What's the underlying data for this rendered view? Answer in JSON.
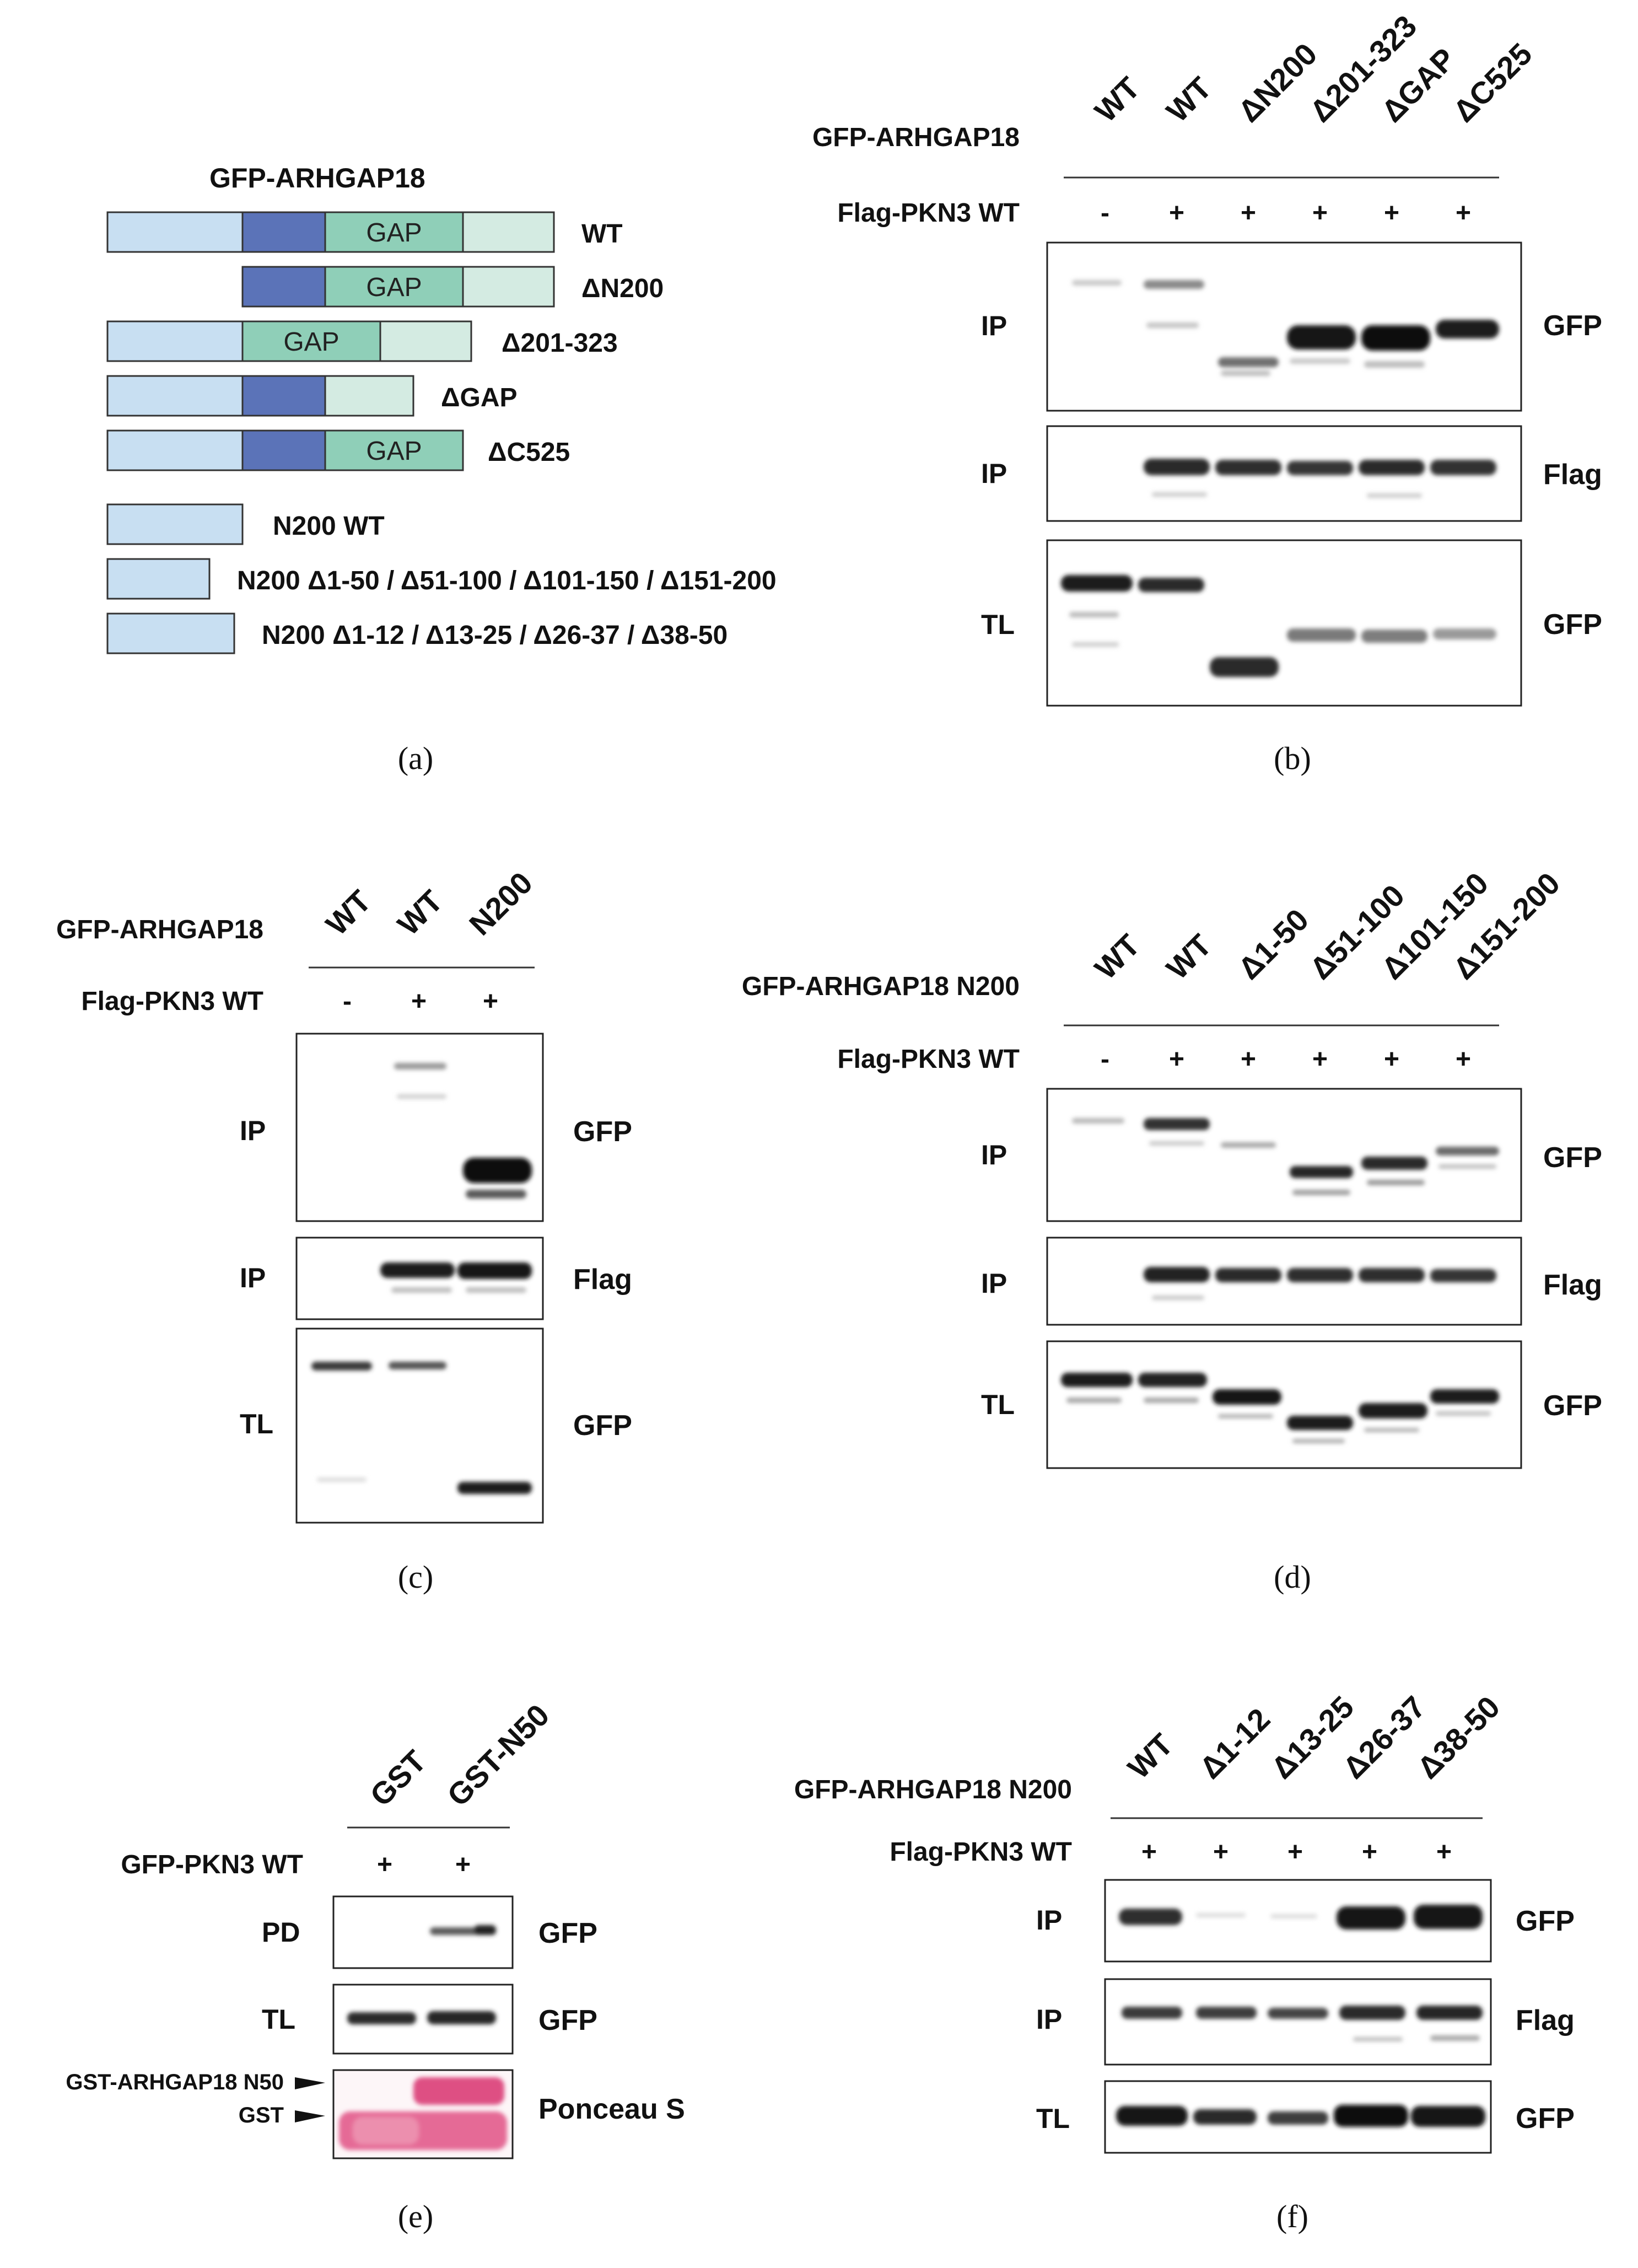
{
  "panel_a": {
    "caption": "(a)",
    "title": "GFP-ARHGAP18",
    "gap_label": "GAP",
    "constructs": [
      {
        "name": "WT"
      },
      {
        "name": "ΔN200"
      },
      {
        "name": "Δ201-323"
      },
      {
        "name": "ΔGAP"
      },
      {
        "name": "ΔC525"
      },
      {
        "name": "N200 WT"
      },
      {
        "name": "N200 Δ1-50 / Δ51-100 / Δ101-150 / Δ151-200"
      },
      {
        "name": "N200 Δ1-12 / Δ13-25 / Δ26-37 / Δ38-50"
      }
    ]
  },
  "panel_b": {
    "caption": "(b)",
    "row1_label": "GFP-ARHGAP18",
    "row2_label": "Flag-PKN3 WT",
    "lanes": [
      "WT",
      "WT",
      "ΔN200",
      "Δ201-323",
      "ΔGAP",
      "ΔC525"
    ],
    "signs": [
      "-",
      "+",
      "+",
      "+",
      "+",
      "+"
    ],
    "blots": [
      {
        "left": "IP",
        "right": "GFP"
      },
      {
        "left": "IP",
        "right": "Flag"
      },
      {
        "left": "TL",
        "right": "GFP"
      }
    ]
  },
  "panel_c": {
    "caption": "(c)",
    "row1_label": "GFP-ARHGAP18",
    "row2_label": "Flag-PKN3 WT",
    "lanes": [
      "WT",
      "WT",
      "N200"
    ],
    "signs": [
      "-",
      "+",
      "+"
    ],
    "blots": [
      {
        "left": "IP",
        "right": "GFP"
      },
      {
        "left": "IP",
        "right": "Flag"
      },
      {
        "left": "TL",
        "right": "GFP"
      }
    ]
  },
  "panel_d": {
    "caption": "(d)",
    "row1_label": "GFP-ARHGAP18 N200",
    "row2_label": "Flag-PKN3 WT",
    "lanes": [
      "WT",
      "WT",
      "Δ1-50",
      "Δ51-100",
      "Δ101-150",
      "Δ151-200"
    ],
    "signs": [
      "-",
      "+",
      "+",
      "+",
      "+",
      "+"
    ],
    "blots": [
      {
        "left": "IP",
        "right": "GFP"
      },
      {
        "left": "IP",
        "right": "Flag"
      },
      {
        "left": "TL",
        "right": "GFP"
      }
    ]
  },
  "panel_e": {
    "caption": "(e)",
    "row2_label": "GFP-PKN3 WT",
    "lanes": [
      "GST",
      "GST-N50"
    ],
    "signs": [
      "+",
      "+"
    ],
    "blots": [
      {
        "left": "PD",
        "right": "GFP"
      },
      {
        "left": "TL",
        "right": "GFP"
      },
      {
        "left": "",
        "right": "Ponceau S"
      }
    ],
    "marker_labels": [
      "GST-ARHGAP18 N50",
      "GST"
    ]
  },
  "panel_f": {
    "caption": "(f)",
    "row1_label": "GFP-ARHGAP18 N200",
    "row2_label": "Flag-PKN3 WT",
    "lanes": [
      "WT",
      "Δ1-12",
      "Δ13-25",
      "Δ26-37",
      "Δ38-50"
    ],
    "signs": [
      "+",
      "+",
      "+",
      "+",
      "+"
    ],
    "blots": [
      {
        "left": "IP",
        "right": "GFP"
      },
      {
        "left": "IP",
        "right": "Flag"
      },
      {
        "left": "TL",
        "right": "GFP"
      }
    ]
  },
  "colors": {
    "n_term": "#c8dff2",
    "mid": "#5b73b8",
    "gap": "#8fcfb8",
    "c_term": "#d4ebe2",
    "ponceau": "#ec8fae",
    "ponceau_dark": "#de4f83"
  }
}
